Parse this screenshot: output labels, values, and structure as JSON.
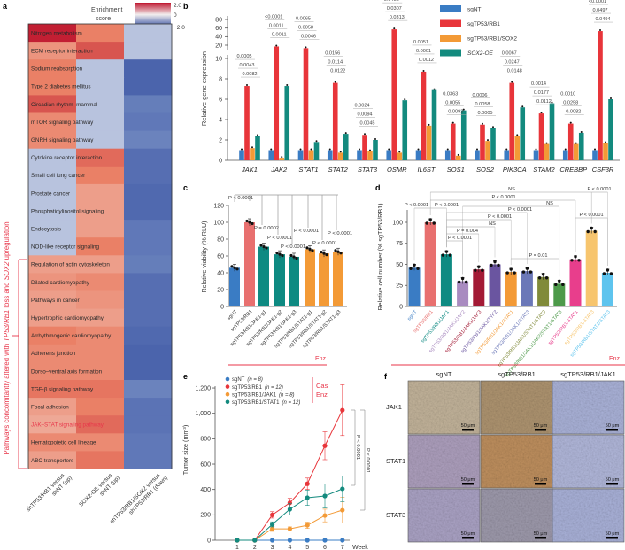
{
  "panel_labels": {
    "a": "a",
    "b": "b",
    "c": "c",
    "d": "d",
    "e": "e",
    "f": "f"
  },
  "colors": {
    "sgNT": "#3a7cc4",
    "sgTP53_RB1": "#e8353a",
    "sgTP53_RB1_SOX2": "#f39a36",
    "SOX2_OE": "#138a7e",
    "annotation_red": "#e8364a"
  },
  "chart_data": [
    {
      "id": "a",
      "type": "heatmap",
      "title": "Enrichment score",
      "colorbar": {
        "title_line1": "Enrichment",
        "title_line2": "score",
        "ticks": [
          "2.0",
          "0",
          "−2.0"
        ],
        "range": [
          -2.0,
          2.0
        ]
      },
      "columns": [
        {
          "line1": "shTP53/RB1 versus",
          "line2": "shNT (up)"
        },
        {
          "line1": "SOX2-OE versus",
          "line2": "shNT (up)"
        },
        {
          "line1": "shTP53/RB1/SOX2 versus",
          "line2": "shTP53/RB1 (down)"
        }
      ],
      "rows": [
        {
          "label": "Nitrogen metabolism",
          "values": [
            1.9,
            1.0,
            -0.4
          ]
        },
        {
          "label": "ECM receptor interaction",
          "values": [
            0.8,
            1.4,
            -0.4
          ]
        },
        {
          "label": "Sodium reabsorption",
          "values": [
            1.0,
            -0.4,
            -1.7
          ]
        },
        {
          "label": "Type 2 diabetes mellitus",
          "values": [
            1.0,
            -0.4,
            -1.7
          ]
        },
        {
          "label": "Circadian rhythm–mammal",
          "values": [
            1.4,
            -0.4,
            -1.2
          ]
        },
        {
          "label": "mTOR signaling pathway",
          "values": [
            0.9,
            -0.4,
            -1.3
          ]
        },
        {
          "label": "GNRH signaling pathway",
          "values": [
            0.9,
            -0.4,
            -1.1
          ]
        },
        {
          "label": "Cytokine receptor interaction",
          "values": [
            -0.4,
            1.2,
            -1.5
          ]
        },
        {
          "label": "Small cell lung cancer",
          "values": [
            -0.4,
            1.0,
            -1.5
          ]
        },
        {
          "label": "Prostate cancer",
          "values": [
            -0.4,
            0.7,
            -1.6
          ]
        },
        {
          "label": "Phosphatidylinositol signaling",
          "values": [
            -0.4,
            0.7,
            -1.6
          ]
        },
        {
          "label": "Endocytosis",
          "values": [
            -0.4,
            0.7,
            -1.3
          ]
        },
        {
          "label": "NOD-like receptor signaling",
          "values": [
            -0.4,
            1.0,
            -1.3
          ]
        },
        {
          "label": "Regulation of actin cytoskeleton",
          "values": [
            0.7,
            0.7,
            -1.2
          ]
        },
        {
          "label": "Dilated cardiomyopathy",
          "values": [
            0.8,
            0.9,
            -1.5
          ]
        },
        {
          "label": "Pathways in cancer",
          "values": [
            0.7,
            0.8,
            -1.5
          ]
        },
        {
          "label": "Hypertrophic cardiomyopathy",
          "values": [
            0.7,
            0.7,
            -1.5
          ]
        },
        {
          "label": "Arrhythmogenic cardiomyopathy",
          "values": [
            1.0,
            0.9,
            -1.6
          ]
        },
        {
          "label": "Adherens junction",
          "values": [
            0.9,
            0.9,
            -1.7
          ]
        },
        {
          "label": "Dorso–ventral axis formation",
          "values": [
            0.9,
            0.9,
            -1.7
          ]
        },
        {
          "label": "TGF-β signaling pathway",
          "values": [
            1.1,
            1.1,
            -1.1
          ]
        },
        {
          "label": "Focal adhesion",
          "values": [
            0.7,
            1.0,
            -1.4
          ]
        },
        {
          "label": "JAK–STAT signaling pathway",
          "values": [
            0.6,
            1.2,
            -1.4
          ],
          "highlight": true
        },
        {
          "label": "Hematopoietic cell lineage",
          "values": [
            0.9,
            0.9,
            -1.3
          ]
        },
        {
          "label": "ABC transporters",
          "values": [
            0.7,
            1.1,
            -1.3
          ]
        }
      ],
      "bracket_label": {
        "p1": "Pathways concomitantly altered with ",
        "p2": "TP53/RB1",
        "p3": " loss and ",
        "p4": "SOX2",
        "p5": " upregulation"
      }
    },
    {
      "id": "b",
      "type": "bar",
      "ylabel": "Relative gene expression",
      "yticks_lower": [
        "0",
        "2",
        "4",
        "6",
        "8",
        "10"
      ],
      "yticks_upper": [
        "20",
        "40",
        "60",
        "80"
      ],
      "ylim": [
        0,
        80
      ],
      "series": [
        {
          "name": "sgNT",
          "color": "#3a7cc4"
        },
        {
          "name": "sgTP53/RB1",
          "color": "#e8353a"
        },
        {
          "name": "sgTP53/RB1/SOX2",
          "color": "#f39a36"
        },
        {
          "name": "SOX2-OE",
          "color": "#138a7e",
          "italic": true
        }
      ],
      "categories": [
        {
          "gene": "JAK1",
          "values": [
            1,
            7.3,
            1.2,
            2.4
          ],
          "p": [
            "0.0005",
            "0.0043",
            "0.0082"
          ]
        },
        {
          "gene": "JAK2",
          "values": [
            1,
            17,
            0.25,
            7.3
          ],
          "p": [
            "<0.0001",
            "0.0011",
            "0.0011"
          ]
        },
        {
          "gene": "STAT1",
          "values": [
            1,
            13,
            1.0,
            1.8
          ],
          "p": [
            "0.0065",
            "0.0058",
            "0.0046"
          ]
        },
        {
          "gene": "STAT2",
          "values": [
            1,
            7.6,
            0.75,
            2.6
          ],
          "p": [
            "0.0156",
            "0.0114",
            "0.0122"
          ]
        },
        {
          "gene": "STAT3",
          "values": [
            1,
            2.5,
            0.9,
            2.0
          ],
          "p": [
            "0.0024",
            "0.0094",
            "0.0045"
          ]
        },
        {
          "gene": "OSMR",
          "values": [
            1,
            57,
            0.75,
            5.9
          ],
          "p": [
            "0.0456",
            "0.0307",
            "0.0313"
          ]
        },
        {
          "gene": "IL6ST",
          "values": [
            1,
            8.7,
            3.4,
            6.9
          ],
          "p": [
            "0.0051",
            "0.0001",
            "0.0012"
          ]
        },
        {
          "gene": "SOS1",
          "values": [
            1,
            3.6,
            0.45,
            4.9
          ],
          "p": [
            "0.0363",
            "0.0055",
            "0.0093"
          ]
        },
        {
          "gene": "SOS2",
          "values": [
            1,
            3.5,
            1.9,
            3.2
          ],
          "p": [
            "0.0006",
            "0.0058",
            "0.0005"
          ]
        },
        {
          "gene": "PIK3CA",
          "values": [
            1,
            7.6,
            2.4,
            5.2
          ],
          "p": [
            "0.0067",
            "0.0247",
            "0.0148"
          ]
        },
        {
          "gene": "STAM2",
          "values": [
            1,
            4.6,
            1.6,
            5.6
          ],
          "p": [
            "0.0014",
            "0.0177",
            "0.0112"
          ]
        },
        {
          "gene": "CREBBP",
          "values": [
            1,
            3.6,
            1.6,
            2.7
          ],
          "p": [
            "0.0010",
            "0.0258",
            "0.0082"
          ]
        },
        {
          "gene": "CSF3R",
          "values": [
            1,
            53,
            1.7,
            6.0
          ],
          "p": [
            "<0.0001",
            "0.0497",
            "0.0494"
          ]
        }
      ]
    },
    {
      "id": "c",
      "type": "bar",
      "ylabel": "Relative viability (% RLU)",
      "yticks": [
        "0",
        "20",
        "40",
        "60",
        "80",
        "100",
        "120"
      ],
      "ylim": [
        0,
        120
      ],
      "categories": [
        "sgNT",
        "sgTP53/RB1",
        "sgTP53/RB1/JAK1-g1",
        "sgTP53/RB1/JAK1-g2",
        "sgTP53/RB1/JAK1-g3",
        "sgTP53/RB1/STAT1-g1",
        "sgTP53/RB1/STAT1-g2",
        "sgTP53/RB1/STAT1-g3"
      ],
      "values": [
        46,
        100,
        71,
        62,
        59,
        68,
        63,
        65
      ],
      "bar_colors": [
        "#3a7cc4",
        "#e8706f",
        "#0e8a82",
        "#0e8a82",
        "#0e8a82",
        "#f39a36",
        "#f39a36",
        "#f39a36"
      ],
      "comparisons": [
        {
          "target": 0,
          "label": "P < 0.0001"
        },
        {
          "target": 2,
          "label": "P = 0.0002"
        },
        {
          "target": 3,
          "label": "P < 0.0001"
        },
        {
          "target": 4,
          "label": "P < 0.0001"
        },
        {
          "target": 5,
          "label": "P < 0.0001"
        },
        {
          "target": 6,
          "label": "P < 0.0001"
        },
        {
          "target": 7,
          "label": "P < 0.0001"
        }
      ],
      "treatment": "Enz"
    },
    {
      "id": "d",
      "type": "bar",
      "ylabel": "Relative cell number (% sgTP53/RB1)",
      "yticks": [
        "0",
        "25",
        "50",
        "75",
        "100"
      ],
      "ylim": [
        0,
        115
      ],
      "categories": [
        "sgNT",
        "sgTP53/RB1",
        "sgTP53/RB1/JAK1",
        "sgTP53/RB1/JAK1/JAK2",
        "sgTP53/RB1/JAK1/JAK3",
        "sgTP53/RB1/JAK1/TYK2",
        "sgTP53/RB1/JAK1/STAT1",
        "sgTP53/RB1/JAK1/STAT3",
        "sgTP53/RB1/JAK1/STAT1/STAT3",
        "sgTP53/RB1/JAK1/JAK2/STAT1/STAT3",
        "sgTP53/RB1/STAT1",
        "sgTP53/RB1/STAT3",
        "sgTP53/RB1/STAT1/STAT3"
      ],
      "values": [
        46,
        100,
        62,
        30,
        44,
        50,
        41,
        42,
        35,
        27,
        56,
        90,
        40
      ],
      "bar_colors": [
        "#3a7cc4",
        "#e8706f",
        "#0e8a82",
        "#a98bc0",
        "#a31a35",
        "#6a55a0",
        "#f39a36",
        "#6b78b8",
        "#808a3a",
        "#4d9a4a",
        "#e83e8c",
        "#f7c56e",
        "#5ec4ee"
      ],
      "comparisons": [
        {
          "a": 1,
          "b": 11,
          "label": "NS"
        },
        {
          "a": 1,
          "b": 10,
          "label": "P < 0.0001"
        },
        {
          "a": 11,
          "b": 12,
          "label": "P < 0.0001"
        },
        {
          "a": 0,
          "b": 1,
          "label": "P < 0.0001"
        },
        {
          "a": 1,
          "b": 2,
          "label": "P < 0.0001"
        },
        {
          "a": 3,
          "b": 9,
          "label": "NS"
        },
        {
          "a": 2,
          "b": 7,
          "label": "P < 0.0001"
        },
        {
          "a": 2,
          "b": 6,
          "label": "P < 0.0001"
        },
        {
          "a": 2,
          "b": 5,
          "label": "NS"
        },
        {
          "a": 2,
          "b": 4,
          "label": "P = 0.004"
        },
        {
          "a": 2,
          "b": 3,
          "label": "P < 0.0001"
        },
        {
          "a": 6,
          "b": 9,
          "label": "P = 0.01"
        },
        {
          "a": 10,
          "b": 12,
          "label": "P < 0.0001"
        }
      ],
      "treatment": "Enz"
    },
    {
      "id": "e",
      "type": "line",
      "ylabel": "Tumor size (mm³)",
      "xlabel": "Week",
      "x": [
        1,
        2,
        3,
        4,
        5,
        6,
        7
      ],
      "xticks": [
        "1",
        "2",
        "3",
        "4",
        "5",
        "6",
        "7"
      ],
      "yticks": [
        "0",
        "200",
        "400",
        "600",
        "800",
        "1,000",
        "1,200"
      ],
      "ylim": [
        0,
        1200
      ],
      "series": [
        {
          "name": "sgNT",
          "n": "(n = 8)",
          "color": "#3a7cc4",
          "values": [
            0,
            0,
            0,
            0,
            0,
            0,
            0
          ],
          "err": [
            0,
            0,
            0,
            0,
            0,
            0,
            0
          ]
        },
        {
          "name": "sgTP53/RB1",
          "n": "(n = 12)",
          "color": "#e8353a",
          "values": [
            0,
            0,
            200,
            295,
            445,
            745,
            1025
          ],
          "err": [
            0,
            0,
            25,
            35,
            45,
            110,
            200
          ]
        },
        {
          "name": "sgTP53/RB1/JAK1",
          "n": "(n = 8)",
          "color": "#f39a36",
          "values": [
            0,
            0,
            90,
            90,
            118,
            195,
            237
          ],
          "err": [
            0,
            0,
            20,
            15,
            25,
            50,
            100
          ]
        },
        {
          "name": "sgTP53/RB1/STAT1",
          "n": "(n = 12)",
          "color": "#138a7e",
          "values": [
            0,
            0,
            125,
            244,
            335,
            349,
            405
          ],
          "err": [
            0,
            0,
            20,
            45,
            60,
            95,
            100
          ]
        }
      ],
      "treatment_line1": "Cas",
      "treatment_line2": "Enz",
      "comparisons": [
        {
          "a": "sgTP53/RB1",
          "b": "sgTP53/RB1/STAT1",
          "label": "P < 0.0001"
        },
        {
          "a": "sgTP53/RB1",
          "b": "sgTP53/RB1/JAK1",
          "label": "P < 0.0001"
        }
      ]
    }
  ],
  "panel_f": {
    "columns": [
      "sgNT",
      "sgTP53/RB1",
      "sgTP53/RB1/JAK1"
    ],
    "rows": [
      "JAK1",
      "STAT1",
      "STAT3"
    ],
    "scale_bar": "50 μm"
  }
}
